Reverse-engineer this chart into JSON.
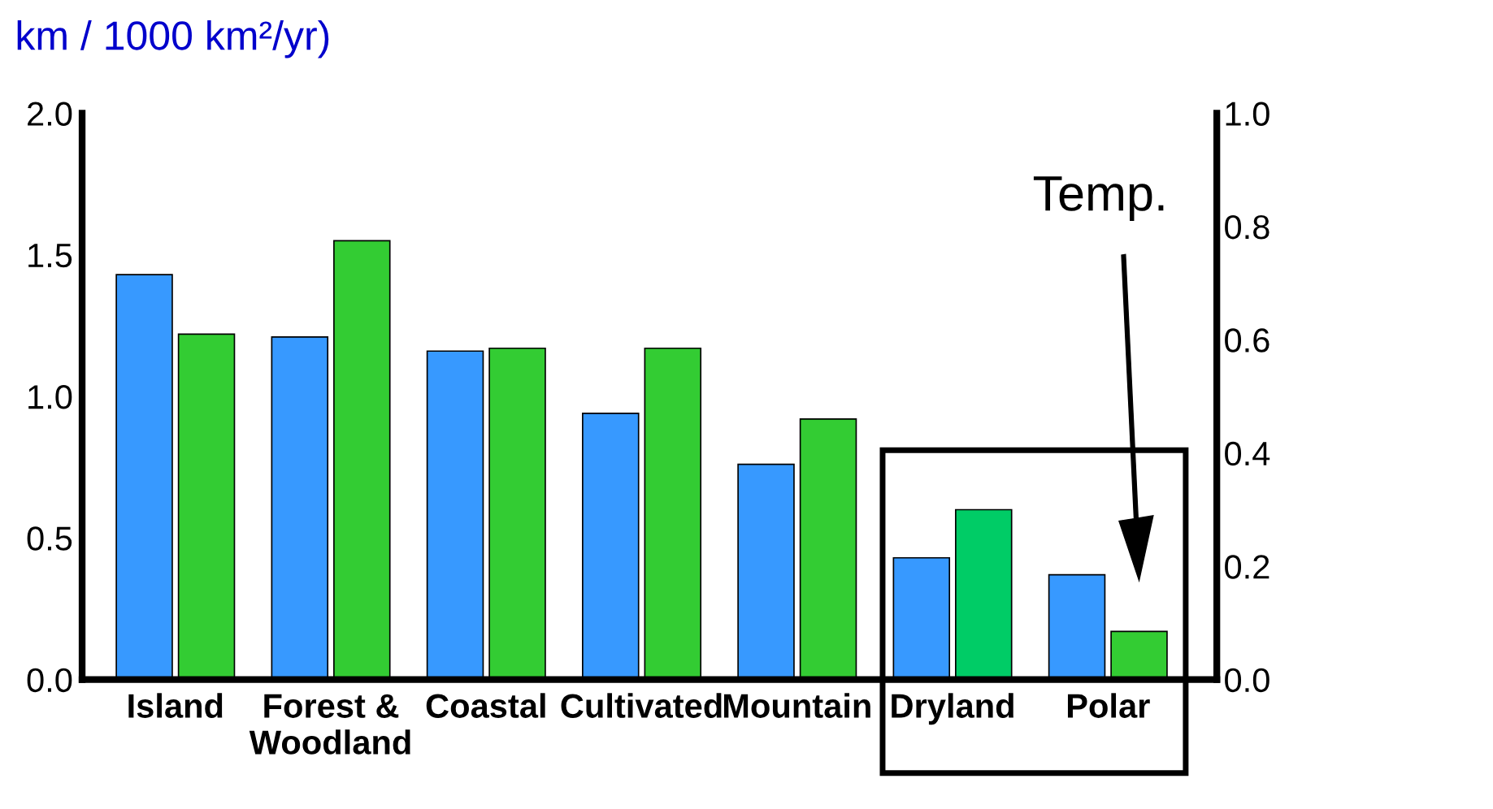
{
  "chart_data": {
    "type": "bar",
    "ylabel": "km / 1000 km²/yr)",
    "categories": [
      "Island",
      "Forest &\nWoodland",
      "Coastal",
      "Cultivated",
      "Mountain",
      "Dryland",
      "Polar"
    ],
    "series": [
      {
        "color": "#3799ff",
        "values": [
          1.43,
          1.21,
          1.16,
          0.94,
          0.76,
          0.43,
          0.37
        ]
      },
      {
        "color": "#33cc33",
        "colors": [
          "#33cc33",
          "#33cc33",
          "#33cc33",
          "#33cc33",
          "#33cc33",
          "#00cc66",
          "#33cc33"
        ],
        "values": [
          1.22,
          1.55,
          1.17,
          1.17,
          0.92,
          0.6,
          0.17
        ]
      }
    ],
    "ylim": [
      0,
      2.0
    ],
    "yticks": [
      {
        "value": 0,
        "label": "0.0"
      },
      0.5,
      {
        "value": 1,
        "label": "1.0"
      },
      1.5,
      {
        "value": 2,
        "label": "2.0"
      }
    ],
    "y2lim": [
      0,
      1.0
    ],
    "y2ticks": [
      {
        "value": 0,
        "label": "0.0"
      },
      0.2,
      0.4,
      0.6,
      0.8,
      {
        "value": 1,
        "label": "1.0"
      }
    ],
    "annotations": [
      "Temp."
    ],
    "grid": false,
    "legend": false
  }
}
